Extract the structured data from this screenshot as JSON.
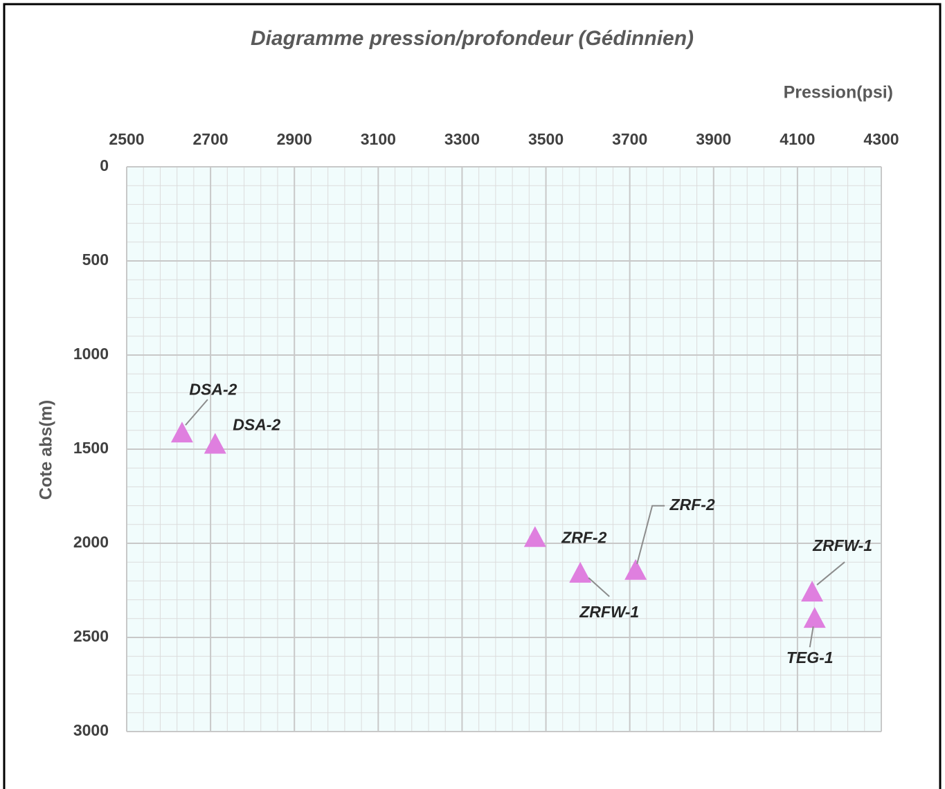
{
  "chart_data": {
    "type": "scatter",
    "title": "Diagramme pression/profondeur  (Gédinnien)",
    "x_label": "Pression(psi)",
    "y_label": "Cote abs(m)",
    "x_axis_position": "top",
    "y_inverted": true,
    "xlim": [
      2500,
      4300
    ],
    "xticks": [
      2500,
      2700,
      2900,
      3100,
      3300,
      3500,
      3700,
      3900,
      4100,
      4300
    ],
    "ylim": [
      0,
      3000
    ],
    "yticks": [
      0,
      500,
      1000,
      1500,
      2000,
      2500,
      3000
    ],
    "grid": true,
    "minor_grid": true,
    "series": [
      {
        "color": "#df7fdf",
        "marker": "triangle",
        "x": [
          2632,
          2711,
          3474,
          3582,
          3714,
          4135,
          4141
        ],
        "values": [
          1420,
          1480,
          1975,
          2165,
          2150,
          2265,
          2405
        ],
        "labels": [
          "DSA-2",
          "DSA-2",
          "ZRF-2",
          "ZRFW-1",
          "ZRF-2",
          "ZRFW-1",
          "TEG-1"
        ]
      }
    ]
  }
}
